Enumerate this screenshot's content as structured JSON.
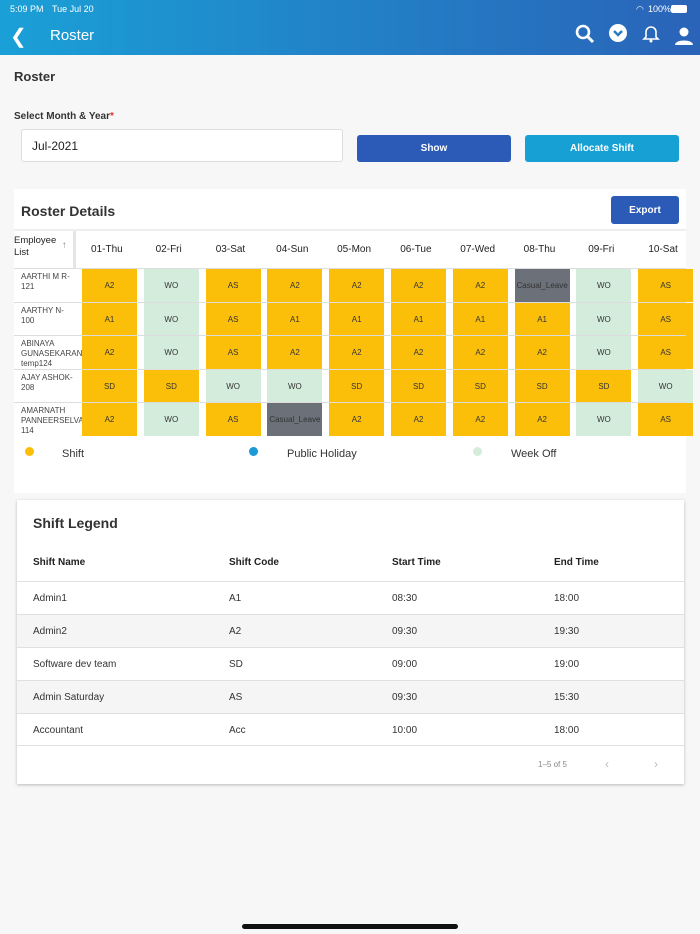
{
  "status_bar": {
    "time": "5:09 PM",
    "date": "Tue Jul 20",
    "battery": "100%"
  },
  "header": {
    "title": "Roster",
    "icons": [
      "back-icon",
      "search-icon",
      "chevron-down-circle-icon",
      "bell-icon",
      "user-icon"
    ]
  },
  "page": {
    "title": "Roster",
    "month_label": "Select Month & Year",
    "required_mark": "*",
    "month_value": "Jul-2021",
    "show_label": "Show",
    "allocate_label": "Allocate Shift"
  },
  "roster": {
    "title": "Roster Details",
    "export_label": "Export",
    "employee_header": "Employee List",
    "days": [
      "01-Thu",
      "02-Fri",
      "03-Sat",
      "04-Sun",
      "05-Mon",
      "06-Tue",
      "07-Wed",
      "08-Thu",
      "09-Fri",
      "10-Sat"
    ],
    "employees": [
      {
        "name": "AARTHI M R-121",
        "shifts": [
          "A2",
          "WO",
          "AS",
          "A2",
          "A2",
          "A2",
          "A2",
          "Casual_Leave",
          "WO",
          "AS"
        ]
      },
      {
        "name": "AARTHY N-100",
        "shifts": [
          "A1",
          "WO",
          "AS",
          "A1",
          "A1",
          "A1",
          "A1",
          "A1",
          "WO",
          "AS"
        ]
      },
      {
        "name": "ABINAYA GUNASEKARAN-temp124",
        "shifts": [
          "A2",
          "WO",
          "AS",
          "A2",
          "A2",
          "A2",
          "A2",
          "A2",
          "WO",
          "AS"
        ]
      },
      {
        "name": "AJAY ASHOK-208",
        "shifts": [
          "SD",
          "SD",
          "WO",
          "WO",
          "SD",
          "SD",
          "SD",
          "SD",
          "SD",
          "WO"
        ]
      },
      {
        "name": "AMARNATH PANNEERSELVAM-114",
        "shifts": [
          "A2",
          "WO",
          "AS",
          "Casual_Leave",
          "A2",
          "A2",
          "A2",
          "A2",
          "WO",
          "AS"
        ]
      }
    ],
    "legend": [
      {
        "label": "Shift",
        "color": "#fbbf0a"
      },
      {
        "label": "Public Holiday",
        "color": "#1a9ad6"
      },
      {
        "label": "Week Off",
        "color": "#d4ecdc"
      }
    ],
    "colors": {
      "shift": "#fbbf0a",
      "week_off": "#d4ecdc",
      "leave": "#6b7079"
    }
  },
  "shift_legend": {
    "title": "Shift Legend",
    "columns": [
      "Shift Name",
      "Shift Code",
      "Start Time",
      "End Time"
    ],
    "rows": [
      [
        "Admin1",
        "A1",
        "08:30",
        "18:00"
      ],
      [
        "Admin2",
        "A2",
        "09:30",
        "19:30"
      ],
      [
        "Software dev team",
        "SD",
        "09:00",
        "19:00"
      ],
      [
        "Admin Saturday",
        "AS",
        "09:30",
        "15:30"
      ],
      [
        "Accountant",
        "Acc",
        "10:00",
        "18:00"
      ]
    ],
    "pagination": "1–5 of 5"
  }
}
